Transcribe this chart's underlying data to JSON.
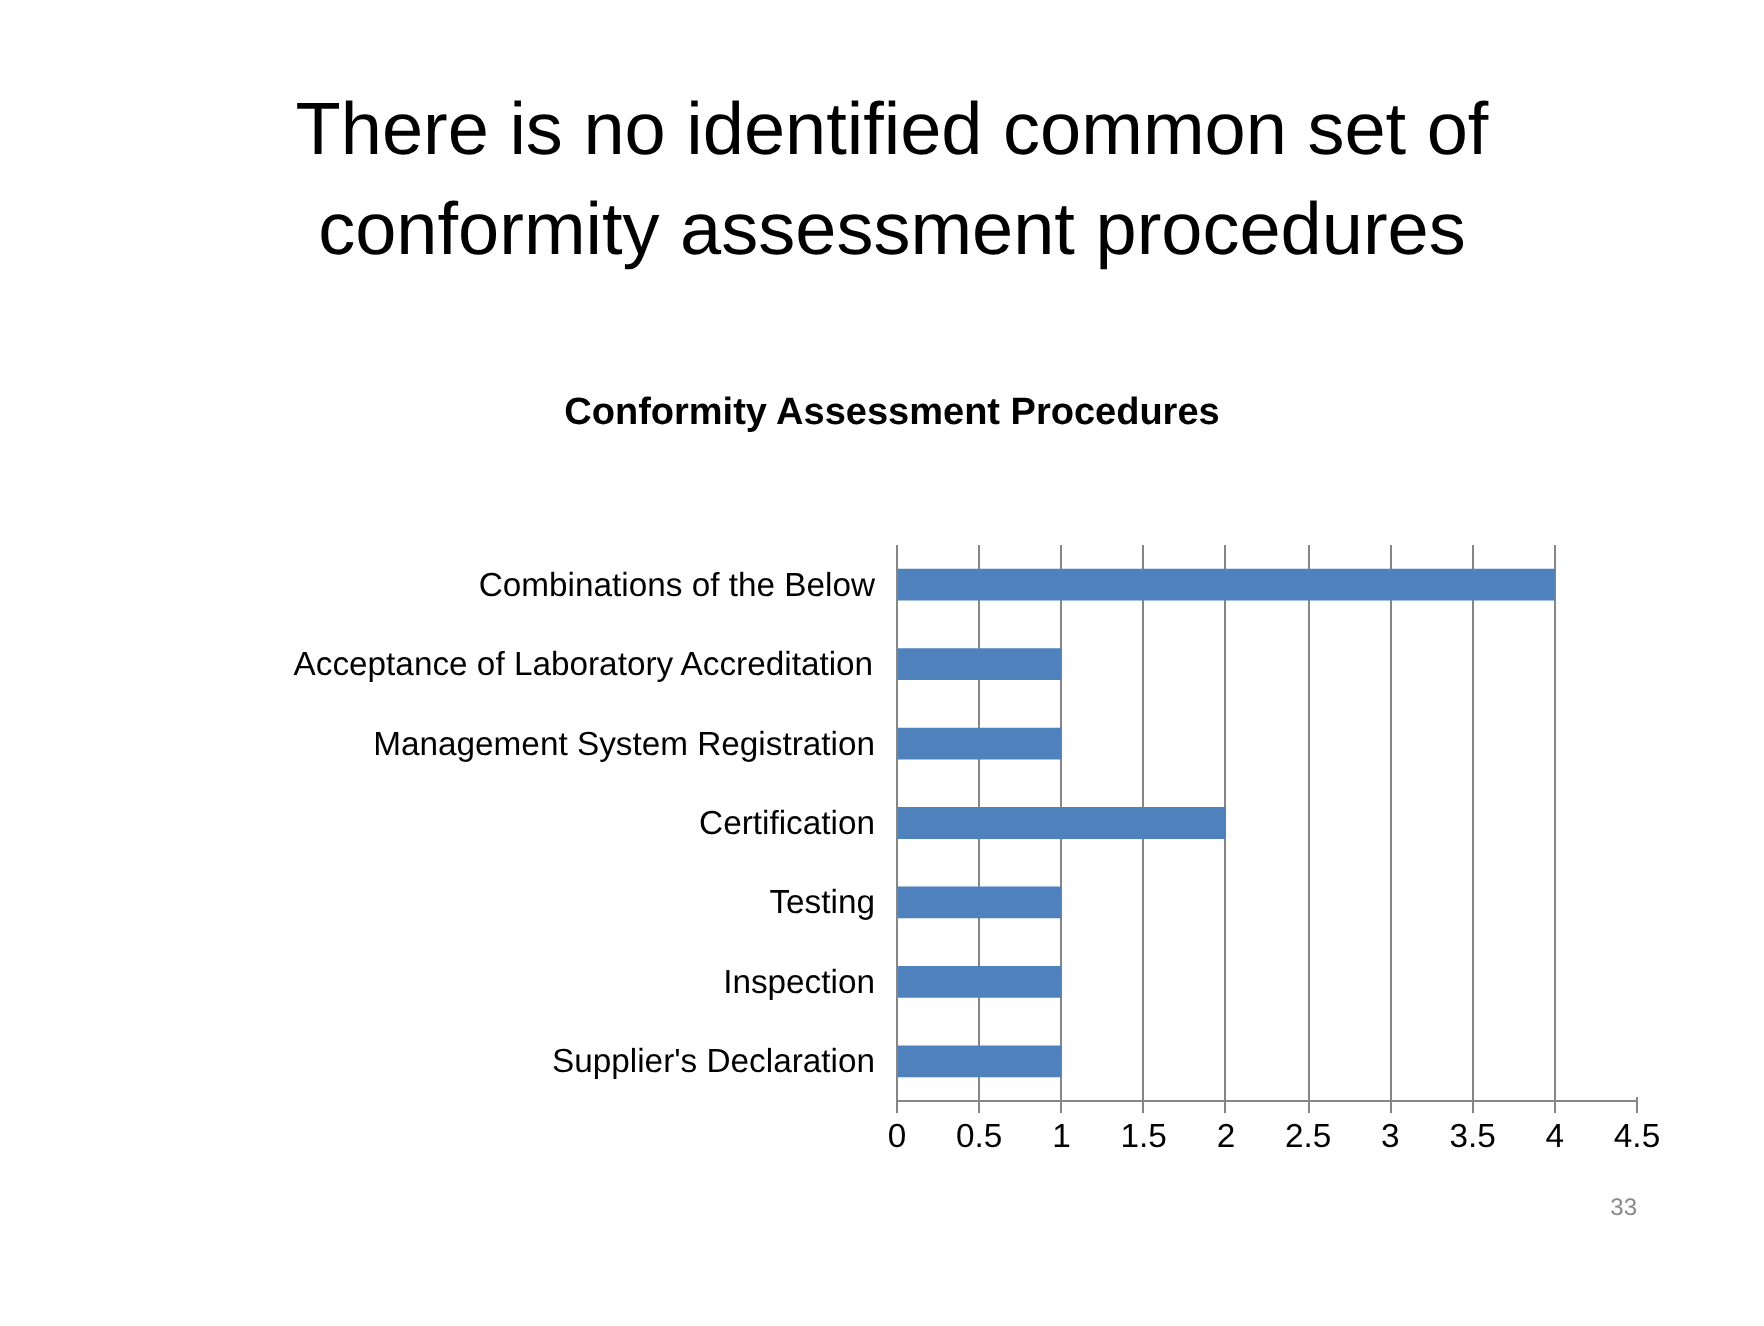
{
  "chart_data": {
    "type": "bar",
    "orientation": "horizontal",
    "title": "Conformity Assessment Procedures",
    "subtitle": "There is no identified common set of\nconformity assessment procedures",
    "categories": [
      "Combinations of the Below",
      "Acceptance of Laboratory Accreditation",
      "Management System Registration",
      "Certification",
      "Testing",
      "Inspection",
      "Supplier's Declaration"
    ],
    "values": [
      4,
      1,
      1,
      2,
      1,
      1,
      1
    ],
    "color": "#4f81bd",
    "xlim": [
      0,
      4.5
    ],
    "xticks": [
      0,
      0.5,
      1,
      1.5,
      2,
      2.5,
      3,
      3.5,
      4,
      4.5
    ],
    "grid": "x",
    "annotations": [
      "33"
    ]
  }
}
